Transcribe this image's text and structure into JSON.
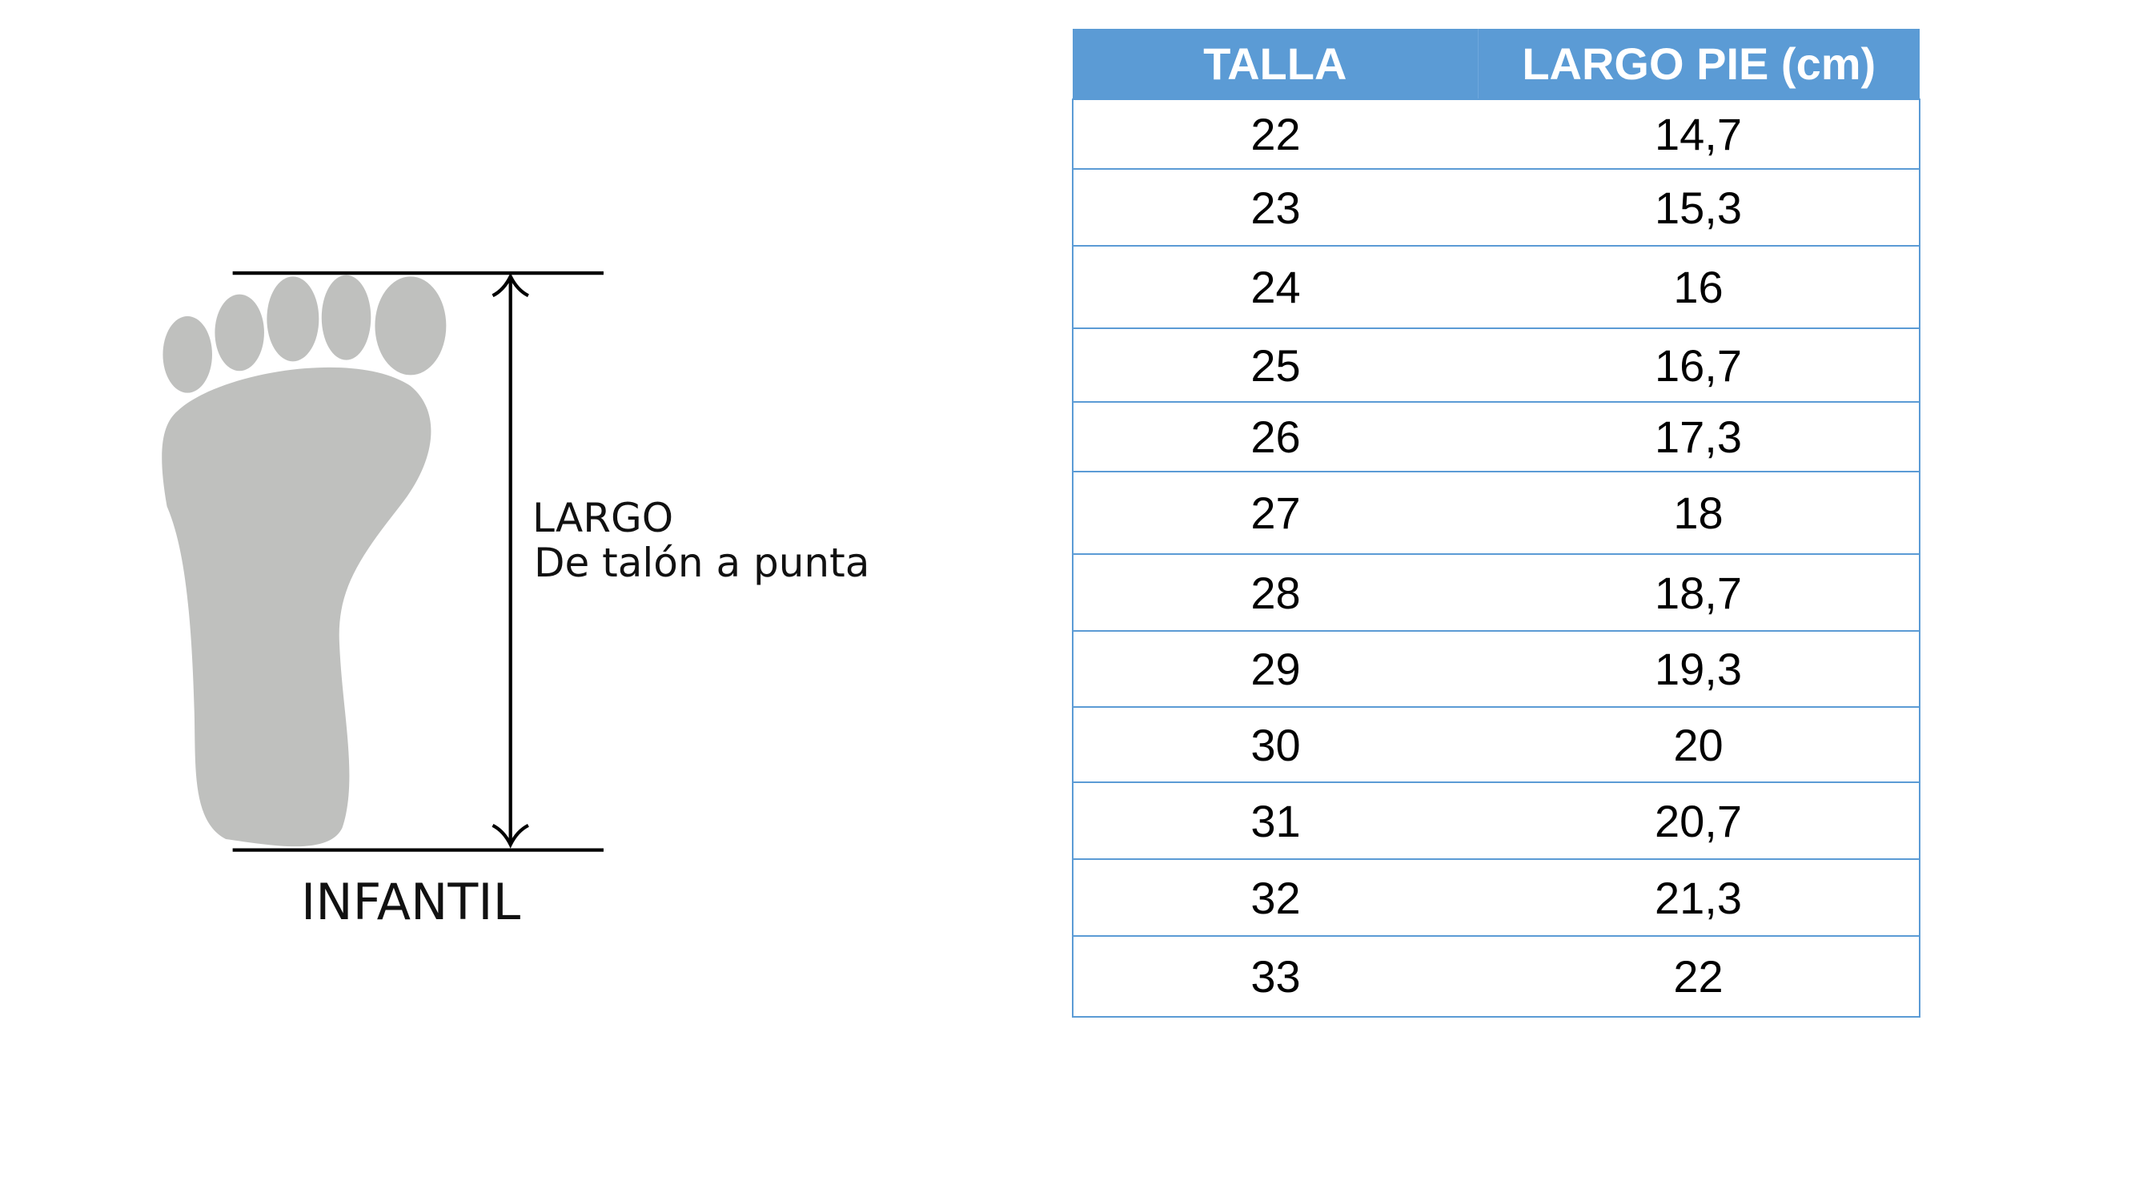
{
  "figure": {
    "measure_label": "LARGO",
    "measure_sublabel": "De talón a punta",
    "category": "INFANTIL",
    "foot_color": "#bfc0be"
  },
  "table": {
    "header_color": "#5b9bd5",
    "headers": [
      "TALLA",
      "LARGO PIE (cm)"
    ],
    "rows": [
      [
        "22",
        "14,7"
      ],
      [
        "23",
        "15,3"
      ],
      [
        "24",
        "16"
      ],
      [
        "25",
        "16,7"
      ],
      [
        "26",
        "17,3"
      ],
      [
        "27",
        "18"
      ],
      [
        "28",
        "18,7"
      ],
      [
        "29",
        "19,3"
      ],
      [
        "30",
        "20"
      ],
      [
        "31",
        "20,7"
      ],
      [
        "32",
        "21,3"
      ],
      [
        "33",
        "22"
      ]
    ]
  }
}
